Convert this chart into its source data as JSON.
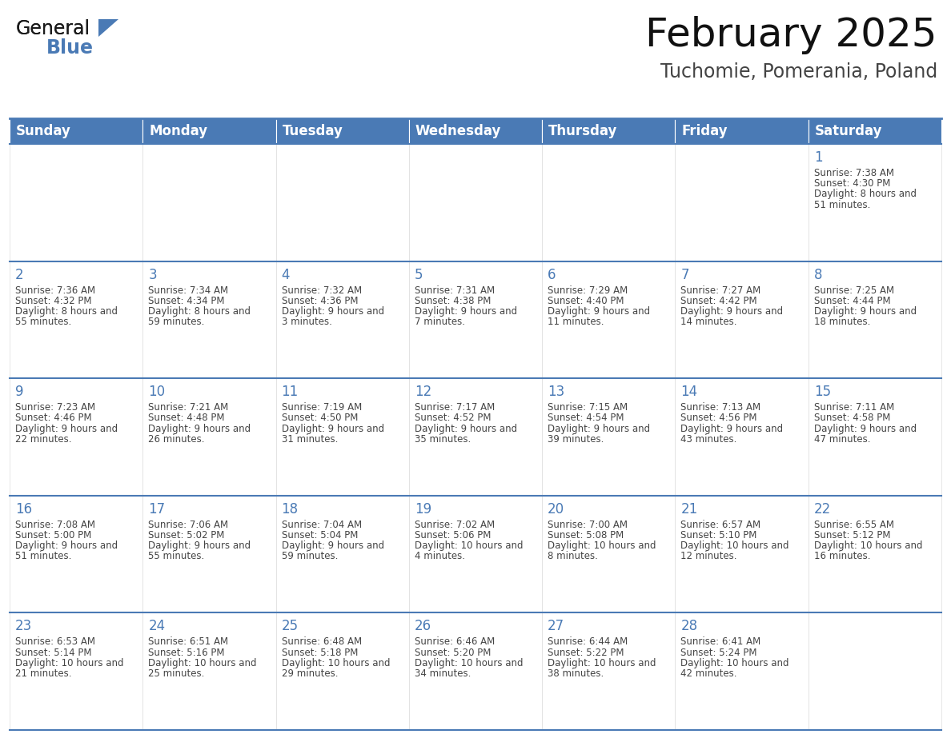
{
  "title": "February 2025",
  "subtitle": "Tuchomie, Pomerania, Poland",
  "days_of_week": [
    "Sunday",
    "Monday",
    "Tuesday",
    "Wednesday",
    "Thursday",
    "Friday",
    "Saturday"
  ],
  "header_bg": "#4a7ab5",
  "header_text": "#ffffff",
  "cell_bg": "#ffffff",
  "cell_text": "#444444",
  "border_color": "#4a7ab5",
  "day_number_color": "#4a7ab5",
  "grid_line_color": "#cccccc",
  "calendar_data": [
    [
      null,
      null,
      null,
      null,
      null,
      null,
      {
        "day": 1,
        "sunrise": "7:38 AM",
        "sunset": "4:30 PM",
        "daylight": "8 hours and 51 minutes"
      }
    ],
    [
      {
        "day": 2,
        "sunrise": "7:36 AM",
        "sunset": "4:32 PM",
        "daylight": "8 hours and 55 minutes"
      },
      {
        "day": 3,
        "sunrise": "7:34 AM",
        "sunset": "4:34 PM",
        "daylight": "8 hours and 59 minutes"
      },
      {
        "day": 4,
        "sunrise": "7:32 AM",
        "sunset": "4:36 PM",
        "daylight": "9 hours and 3 minutes"
      },
      {
        "day": 5,
        "sunrise": "7:31 AM",
        "sunset": "4:38 PM",
        "daylight": "9 hours and 7 minutes"
      },
      {
        "day": 6,
        "sunrise": "7:29 AM",
        "sunset": "4:40 PM",
        "daylight": "9 hours and 11 minutes"
      },
      {
        "day": 7,
        "sunrise": "7:27 AM",
        "sunset": "4:42 PM",
        "daylight": "9 hours and 14 minutes"
      },
      {
        "day": 8,
        "sunrise": "7:25 AM",
        "sunset": "4:44 PM",
        "daylight": "9 hours and 18 minutes"
      }
    ],
    [
      {
        "day": 9,
        "sunrise": "7:23 AM",
        "sunset": "4:46 PM",
        "daylight": "9 hours and 22 minutes"
      },
      {
        "day": 10,
        "sunrise": "7:21 AM",
        "sunset": "4:48 PM",
        "daylight": "9 hours and 26 minutes"
      },
      {
        "day": 11,
        "sunrise": "7:19 AM",
        "sunset": "4:50 PM",
        "daylight": "9 hours and 31 minutes"
      },
      {
        "day": 12,
        "sunrise": "7:17 AM",
        "sunset": "4:52 PM",
        "daylight": "9 hours and 35 minutes"
      },
      {
        "day": 13,
        "sunrise": "7:15 AM",
        "sunset": "4:54 PM",
        "daylight": "9 hours and 39 minutes"
      },
      {
        "day": 14,
        "sunrise": "7:13 AM",
        "sunset": "4:56 PM",
        "daylight": "9 hours and 43 minutes"
      },
      {
        "day": 15,
        "sunrise": "7:11 AM",
        "sunset": "4:58 PM",
        "daylight": "9 hours and 47 minutes"
      }
    ],
    [
      {
        "day": 16,
        "sunrise": "7:08 AM",
        "sunset": "5:00 PM",
        "daylight": "9 hours and 51 minutes"
      },
      {
        "day": 17,
        "sunrise": "7:06 AM",
        "sunset": "5:02 PM",
        "daylight": "9 hours and 55 minutes"
      },
      {
        "day": 18,
        "sunrise": "7:04 AM",
        "sunset": "5:04 PM",
        "daylight": "9 hours and 59 minutes"
      },
      {
        "day": 19,
        "sunrise": "7:02 AM",
        "sunset": "5:06 PM",
        "daylight": "10 hours and 4 minutes"
      },
      {
        "day": 20,
        "sunrise": "7:00 AM",
        "sunset": "5:08 PM",
        "daylight": "10 hours and 8 minutes"
      },
      {
        "day": 21,
        "sunrise": "6:57 AM",
        "sunset": "5:10 PM",
        "daylight": "10 hours and 12 minutes"
      },
      {
        "day": 22,
        "sunrise": "6:55 AM",
        "sunset": "5:12 PM",
        "daylight": "10 hours and 16 minutes"
      }
    ],
    [
      {
        "day": 23,
        "sunrise": "6:53 AM",
        "sunset": "5:14 PM",
        "daylight": "10 hours and 21 minutes"
      },
      {
        "day": 24,
        "sunrise": "6:51 AM",
        "sunset": "5:16 PM",
        "daylight": "10 hours and 25 minutes"
      },
      {
        "day": 25,
        "sunrise": "6:48 AM",
        "sunset": "5:18 PM",
        "daylight": "10 hours and 29 minutes"
      },
      {
        "day": 26,
        "sunrise": "6:46 AM",
        "sunset": "5:20 PM",
        "daylight": "10 hours and 34 minutes"
      },
      {
        "day": 27,
        "sunrise": "6:44 AM",
        "sunset": "5:22 PM",
        "daylight": "10 hours and 38 minutes"
      },
      {
        "day": 28,
        "sunrise": "6:41 AM",
        "sunset": "5:24 PM",
        "daylight": "10 hours and 42 minutes"
      },
      null
    ]
  ],
  "logo_color_general": "#1a1a1a",
  "logo_color_blue": "#4a7ab5",
  "logo_triangle_color": "#4a7ab5",
  "title_fontsize": 36,
  "subtitle_fontsize": 17,
  "header_fontsize": 12,
  "day_num_fontsize": 12,
  "cell_text_fontsize": 8.5
}
